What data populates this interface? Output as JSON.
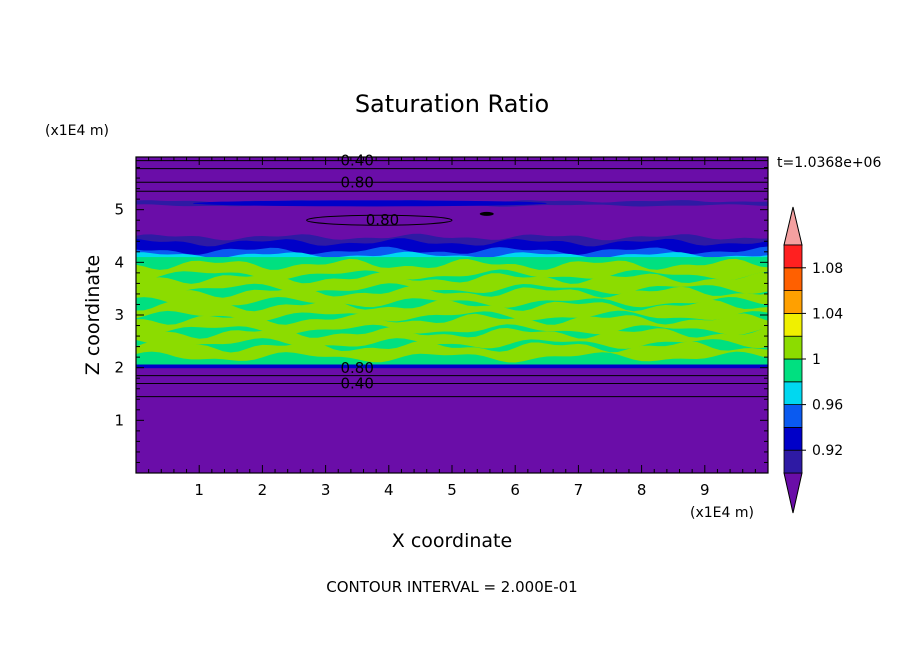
{
  "chart_data": {
    "type": "heatmap",
    "title": "Saturation Ratio",
    "xlabel": "X coordinate",
    "ylabel": "Z coordinate",
    "x_unit": "(x1E4 m)",
    "y_unit": "(x1E4 m)",
    "time_label": "t=1.0368e+06",
    "footer": "CONTOUR INTERVAL = 2.000E-01",
    "xlim": [
      0,
      10
    ],
    "ylim": [
      0,
      6
    ],
    "x_ticks": [
      "1",
      "2",
      "3",
      "4",
      "5",
      "6",
      "7",
      "8",
      "9"
    ],
    "y_ticks": [
      "1",
      "2",
      "3",
      "4",
      "5"
    ],
    "colorbar": {
      "labels": [
        "0.92",
        "0.96",
        "1",
        "1.04",
        "1.08"
      ],
      "colors": [
        "#6a0da8",
        "#2e1aa4",
        "#0000c8",
        "#0a5af0",
        "#00d8f0",
        "#00e080",
        "#8cdc00",
        "#f0f000",
        "#ffa000",
        "#ff6000",
        "#ff2020",
        "#f4a0a0"
      ]
    },
    "contour_labels": [
      "0.40",
      "0.80",
      "0.80",
      "0.80",
      "0.40"
    ],
    "layers": [
      {
        "z0": 0.0,
        "z1": 2.0,
        "value": "< 0.90"
      },
      {
        "z0": 2.0,
        "z1": 2.05,
        "value": "0.92-0.96"
      },
      {
        "z0": 2.05,
        "z1": 4.1,
        "value": "0.98-1.02"
      },
      {
        "z0": 4.1,
        "z1": 4.25,
        "value": "0.96-0.98"
      },
      {
        "z0": 4.25,
        "z1": 4.45,
        "value": "0.92-0.96"
      },
      {
        "z0": 4.45,
        "z1": 6.0,
        "value": "< 0.90"
      }
    ]
  }
}
